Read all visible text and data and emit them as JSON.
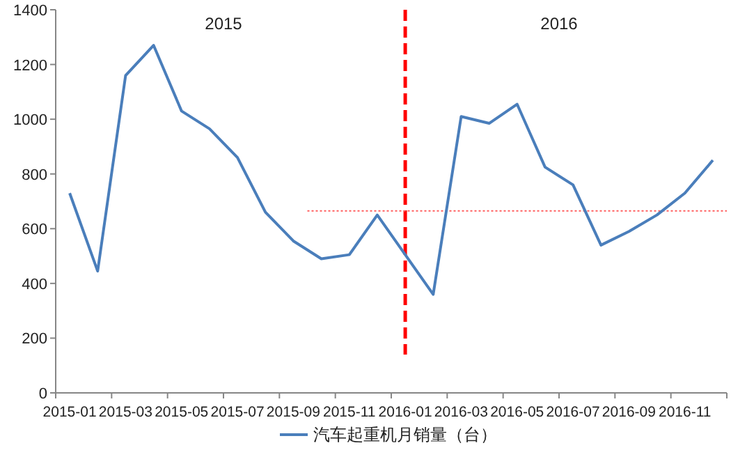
{
  "chart_data": {
    "type": "line",
    "categories": [
      "2015-01",
      null,
      "2015-03",
      null,
      "2015-05",
      null,
      "2015-07",
      null,
      "2015-09",
      null,
      "2015-11",
      null,
      "2016-01",
      null,
      "2016-03",
      null,
      "2016-05",
      null,
      "2016-07",
      null,
      "2016-09",
      null,
      "2016-11",
      null
    ],
    "series": [
      {
        "name": "汽车起重机月销量（台）",
        "color": "#4a7ebb",
        "values": [
          730,
          445,
          1160,
          1270,
          1030,
          965,
          860,
          660,
          555,
          490,
          505,
          650,
          505,
          360,
          1010,
          985,
          1055,
          825,
          760,
          540,
          590,
          650,
          730,
          850
        ]
      }
    ],
    "ylim": [
      0,
      1400
    ],
    "yticks": [
      0,
      200,
      400,
      600,
      800,
      1000,
      1200,
      1400
    ],
    "ref_lines": [
      {
        "axis": "x",
        "value": "2016-01",
        "color": "#ff0000",
        "line_style": "dashed"
      },
      {
        "axis": "y",
        "value": 665,
        "color": "#ff6060",
        "line_style": "dotted"
      }
    ],
    "annotations": [
      "2015",
      "2016"
    ],
    "legend": "bottom",
    "grid": false,
    "marker": "none",
    "line_style": "solid"
  }
}
